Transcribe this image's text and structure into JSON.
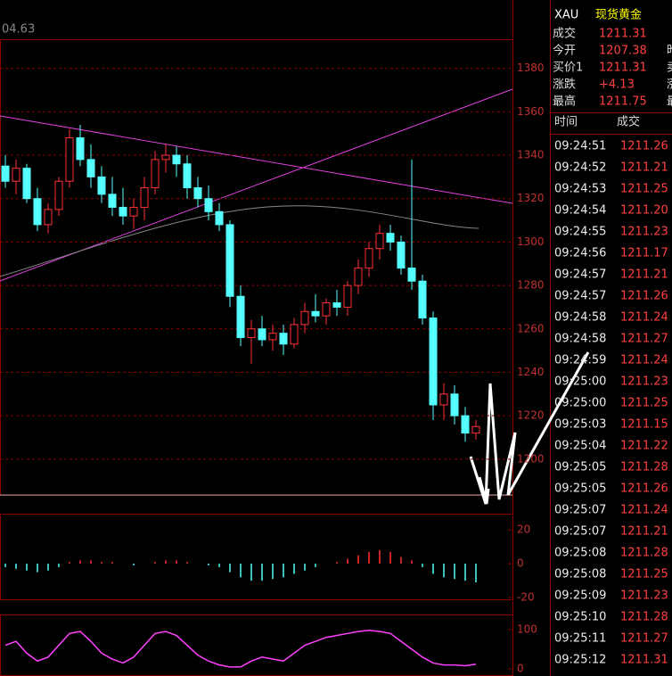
{
  "chart_data": [
    {
      "type": "candlestick",
      "annotation": "04.63",
      "open": [
        1335,
        1328,
        1334,
        1320,
        1308,
        1315,
        1328,
        1348,
        1338,
        1330,
        1322,
        1316,
        1312,
        1316,
        1325,
        1338,
        1340,
        1336,
        1325,
        1320,
        1314,
        1308,
        1275,
        1256,
        1260,
        1255,
        1258,
        1253,
        1262,
        1268,
        1266,
        1272,
        1270,
        1280,
        1288,
        1297,
        1304,
        1300,
        1288,
        1282,
        1265,
        1225,
        1230,
        1220,
        1212
      ],
      "high": [
        1340,
        1338,
        1336,
        1325,
        1318,
        1330,
        1352,
        1354,
        1345,
        1335,
        1330,
        1325,
        1320,
        1330,
        1342,
        1345,
        1344,
        1340,
        1330,
        1326,
        1318,
        1310,
        1280,
        1264,
        1266,
        1262,
        1262,
        1265,
        1272,
        1276,
        1274,
        1278,
        1282,
        1292,
        1300,
        1308,
        1308,
        1303,
        1338,
        1285,
        1268,
        1235,
        1234,
        1224,
        1218
      ],
      "low": [
        1325,
        1322,
        1318,
        1305,
        1304,
        1312,
        1325,
        1335,
        1325,
        1318,
        1312,
        1308,
        1306,
        1310,
        1322,
        1332,
        1330,
        1320,
        1316,
        1310,
        1305,
        1270,
        1252,
        1244,
        1252,
        1250,
        1248,
        1251,
        1258,
        1263,
        1262,
        1266,
        1266,
        1276,
        1284,
        1292,
        1296,
        1285,
        1278,
        1262,
        1218,
        1218,
        1216,
        1208,
        1209
      ],
      "close": [
        1328,
        1334,
        1320,
        1308,
        1315,
        1328,
        1348,
        1338,
        1330,
        1322,
        1316,
        1312,
        1316,
        1325,
        1338,
        1340,
        1336,
        1325,
        1320,
        1314,
        1308,
        1275,
        1256,
        1260,
        1255,
        1258,
        1253,
        1262,
        1268,
        1266,
        1272,
        1270,
        1280,
        1288,
        1297,
        1304,
        1300,
        1288,
        1282,
        1265,
        1225,
        1230,
        1220,
        1212,
        1215
      ],
      "up_color": "#ff3232",
      "down_color": "#54ffff",
      "ylim": [
        1183.5,
        1393
      ],
      "yticks": [
        1200,
        1220,
        1240,
        1260,
        1280,
        1300,
        1320,
        1340,
        1360,
        1380
      ],
      "grid": true
    },
    {
      "type": "bar",
      "values": [
        -2,
        -3,
        -4,
        -5,
        -4,
        -2,
        1,
        2,
        2,
        1,
        1,
        0,
        -1,
        0,
        1,
        2,
        2,
        1,
        0,
        -1,
        -2,
        -5,
        -8,
        -10,
        -10,
        -9,
        -8,
        -6,
        -4,
        -2,
        0,
        1,
        3,
        5,
        7,
        8,
        7,
        4,
        2,
        -2,
        -6,
        -8,
        -9,
        -10,
        -11
      ],
      "up_color": "#ff3232",
      "down_color": "#54ffff",
      "ylim": [
        -21,
        29
      ],
      "yticks": [
        -20,
        0,
        20
      ],
      "grid": false
    },
    {
      "type": "line",
      "series": [
        {
          "color": "#ff40ff",
          "values": [
            60,
            70,
            40,
            20,
            30,
            60,
            90,
            95,
            70,
            40,
            25,
            15,
            30,
            60,
            90,
            95,
            85,
            60,
            35,
            20,
            10,
            5,
            5,
            20,
            30,
            25,
            20,
            40,
            60,
            70,
            80,
            85,
            90,
            95,
            98,
            95,
            90,
            70,
            50,
            30,
            15,
            10,
            10,
            8,
            12
          ]
        }
      ],
      "ylim": [
        -18,
        136
      ],
      "yticks": [
        0,
        100
      ],
      "grid": false
    }
  ],
  "quote": {
    "symbol": "XAU",
    "name": "现货黄金",
    "rows": [
      {
        "label": "成交",
        "value": "1211.31"
      },
      {
        "label": "今开",
        "value": "1207.38",
        "extra": "昨"
      },
      {
        "label": "买价1",
        "value": "1211.31",
        "extra": "卖"
      },
      {
        "label": "涨跌",
        "value": "+4.13",
        "extra": "涨"
      },
      {
        "label": "最高",
        "value": "1211.75",
        "extra": "最"
      }
    ]
  },
  "ticks": {
    "header": [
      "时间",
      "成交"
    ],
    "rows": [
      [
        "09:24:51",
        "1211.26"
      ],
      [
        "09:24:52",
        "1211.21"
      ],
      [
        "09:24:53",
        "1211.25"
      ],
      [
        "09:24:54",
        "1211.20"
      ],
      [
        "09:24:55",
        "1211.23"
      ],
      [
        "09:24:56",
        "1211.17"
      ],
      [
        "09:24:57",
        "1211.21"
      ],
      [
        "09:24:57",
        "1211.26"
      ],
      [
        "09:24:58",
        "1211.24"
      ],
      [
        "09:24:58",
        "1211.27"
      ],
      [
        "09:24:59",
        "1211.24"
      ],
      [
        "09:25:00",
        "1211.23"
      ],
      [
        "09:25:00",
        "1211.25"
      ],
      [
        "09:25:03",
        "1211.15"
      ],
      [
        "09:25:04",
        "1211.22"
      ],
      [
        "09:25:05",
        "1211.28"
      ],
      [
        "09:25:05",
        "1211.26"
      ],
      [
        "09:25:07",
        "1211.24"
      ],
      [
        "09:25:07",
        "1211.21"
      ],
      [
        "09:25:08",
        "1211.28"
      ],
      [
        "09:25:08",
        "1211.25"
      ],
      [
        "09:25:09",
        "1211.23"
      ],
      [
        "09:25:10",
        "1211.28"
      ],
      [
        "09:25:11",
        "1211.27"
      ],
      [
        "09:25:12",
        "1211.31"
      ]
    ]
  }
}
